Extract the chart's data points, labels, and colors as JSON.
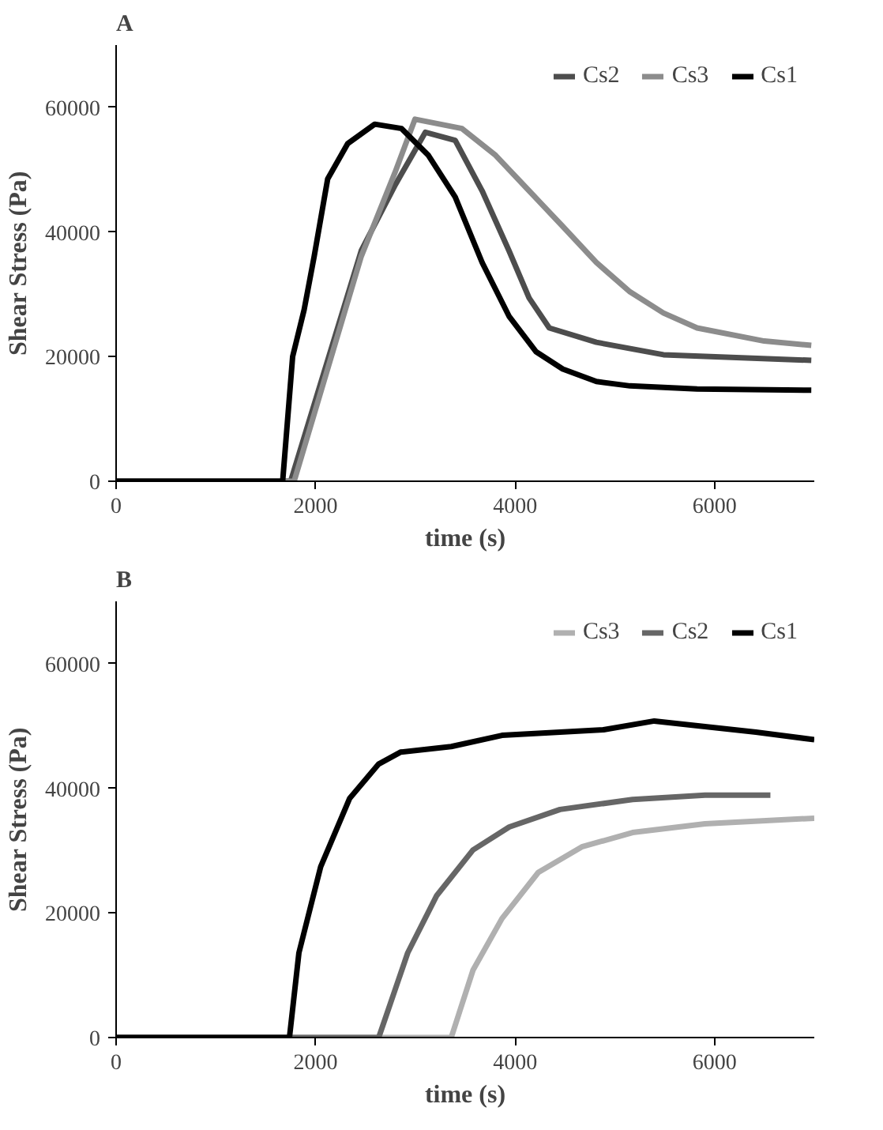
{
  "chart_data": [
    {
      "type": "line",
      "title": "A",
      "xlabel": "time (s)",
      "ylabel": "Shear Stress (Pa)",
      "xlim": [
        0,
        7000
      ],
      "ylim": [
        0,
        70000
      ],
      "xticks": [
        0,
        2000,
        4000,
        6000
      ],
      "yticks": [
        0,
        20000,
        40000,
        60000
      ],
      "legend": "top right",
      "grid": false,
      "marker": "none",
      "line_style": "solid",
      "series": [
        {
          "name": "Cs2",
          "color": "#4d4d4d",
          "x": [
            0,
            1750,
            2458,
            2800,
            3100,
            3400,
            3670,
            3939,
            4141,
            4343,
            4815,
            5488,
            6970
          ],
          "values": [
            0,
            0,
            37000,
            47600,
            56000,
            54700,
            46600,
            37000,
            29400,
            24600,
            22300,
            20300,
            19400
          ]
        },
        {
          "name": "Cs3",
          "color": "#8c8c8c",
          "x": [
            0,
            1785,
            2458,
            2795,
            2997,
            3468,
            3805,
            4141,
            4478,
            4815,
            5152,
            5488,
            5825,
            6498,
            6970
          ],
          "values": [
            0,
            0,
            36100,
            49500,
            58100,
            56600,
            52300,
            46600,
            40900,
            35100,
            30400,
            27000,
            24600,
            22500,
            21800
          ]
        },
        {
          "name": "Cs1",
          "color": "#000000",
          "x": [
            0,
            1670,
            1770,
            1885,
            1986,
            2121,
            2323,
            2593,
            2862,
            3131,
            3400,
            3670,
            3939,
            4209,
            4478,
            4815,
            5152,
            5825,
            6970
          ],
          "values": [
            0,
            0,
            20000,
            27500,
            36100,
            48500,
            54200,
            57300,
            56600,
            52300,
            45600,
            35100,
            26500,
            20800,
            18000,
            16000,
            15300,
            14800,
            14600
          ]
        }
      ]
    },
    {
      "type": "line",
      "title": "B",
      "xlabel": "time (s)",
      "ylabel": "Shear Stress (Pa)",
      "xlim": [
        0,
        7000
      ],
      "ylim": [
        0,
        70000
      ],
      "xticks": [
        0,
        2000,
        4000,
        6000
      ],
      "yticks": [
        0,
        20000,
        40000,
        60000
      ],
      "legend": "top right",
      "grid": false,
      "marker": "none",
      "line_style": "solid",
      "series": [
        {
          "name": "Cs3",
          "color": "#b0b0b0",
          "x": [
            0,
            3360,
            3578,
            3869,
            4233,
            4669,
            5178,
            5905,
            7000
          ],
          "values": [
            0,
            0,
            10800,
            19100,
            26500,
            30600,
            32900,
            34300,
            35200
          ]
        },
        {
          "name": "Cs2",
          "color": "#666666",
          "x": [
            0,
            2633,
            2924,
            3215,
            3578,
            3942,
            4451,
            5178,
            5905,
            6560
          ],
          "values": [
            0,
            0,
            13600,
            22800,
            30100,
            33800,
            36600,
            38200,
            38900,
            38900
          ]
        },
        {
          "name": "Cs1",
          "color": "#000000",
          "x": [
            0,
            1738,
            1833,
            2051,
            2342,
            2633,
            2851,
            3360,
            3869,
            4451,
            4887,
            5396,
            5905,
            6415,
            7000
          ],
          "values": [
            0,
            0,
            13600,
            27400,
            38400,
            43900,
            45800,
            46700,
            48500,
            49000,
            49400,
            50800,
            49900,
            49000,
            47800
          ]
        }
      ]
    }
  ]
}
